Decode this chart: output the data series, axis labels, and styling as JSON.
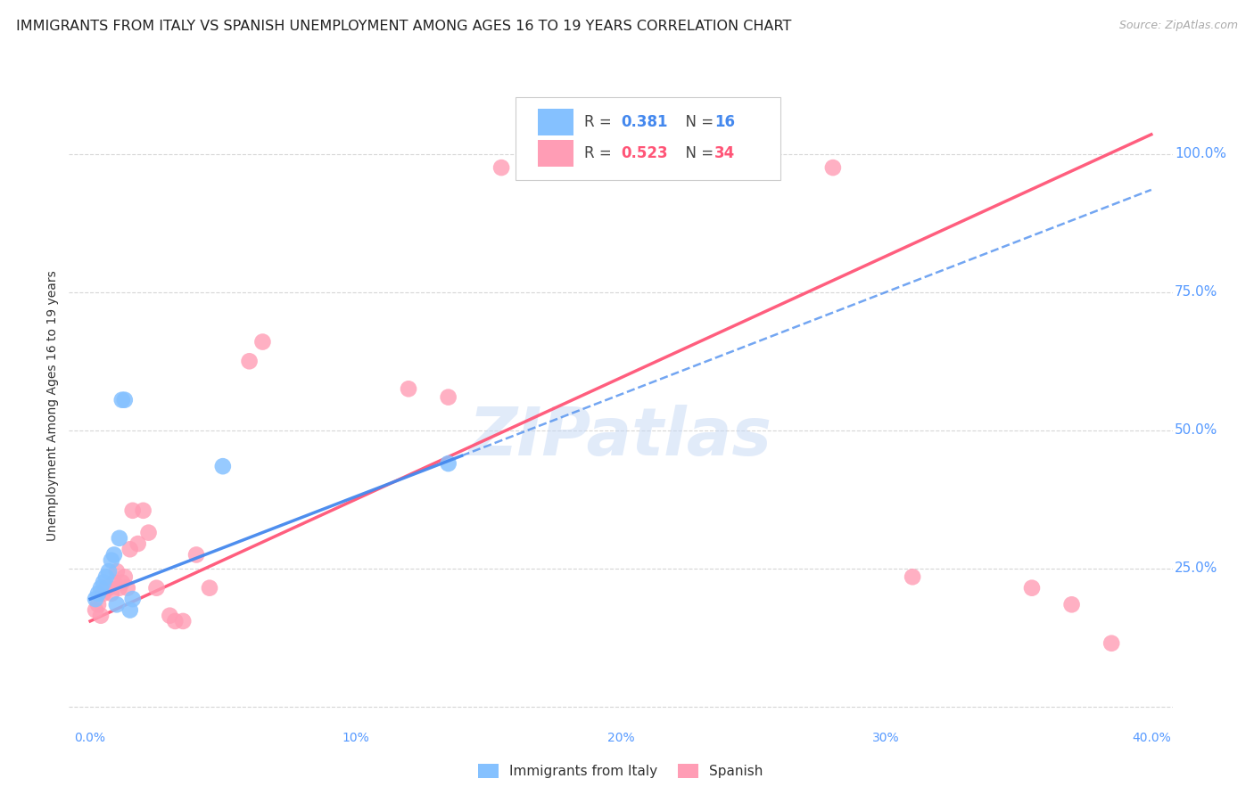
{
  "title": "IMMIGRANTS FROM ITALY VS SPANISH UNEMPLOYMENT AMONG AGES 16 TO 19 YEARS CORRELATION CHART",
  "source": "Source: ZipAtlas.com",
  "ylabel": "Unemployment Among Ages 16 to 19 years",
  "xlim": [
    0.0,
    0.4
  ],
  "ylim": [
    -0.03,
    1.12
  ],
  "xticks": [
    0.0,
    0.1,
    0.2,
    0.3,
    0.4
  ],
  "yticks_right": [
    0.0,
    0.25,
    0.5,
    0.75,
    1.0
  ],
  "ytick_labels_right": [
    "",
    "25.0%",
    "50.0%",
    "75.0%",
    "100.0%"
  ],
  "xtick_labels": [
    "0.0%",
    "10%",
    "20%",
    "30%",
    "40.0%"
  ],
  "watermark": "ZIPatlas",
  "legend_italy_label": "Immigrants from Italy",
  "legend_spanish_label": "Spanish",
  "color_italy": "#85c1ff",
  "color_spanish": "#ff9db5",
  "color_italy_line": "#4488ee",
  "color_spanish_line": "#ff5577",
  "color_axis_labels": "#5599ff",
  "color_r_value": "#4488ee",
  "color_r_spanish": "#ff5577",
  "italy_x": [
    0.002,
    0.003,
    0.004,
    0.005,
    0.006,
    0.007,
    0.008,
    0.009,
    0.01,
    0.011,
    0.012,
    0.013,
    0.015,
    0.016,
    0.05,
    0.135
  ],
  "italy_y": [
    0.195,
    0.205,
    0.215,
    0.225,
    0.235,
    0.245,
    0.265,
    0.275,
    0.185,
    0.305,
    0.555,
    0.555,
    0.175,
    0.195,
    0.435,
    0.44
  ],
  "spanish_x": [
    0.002,
    0.003,
    0.004,
    0.005,
    0.006,
    0.007,
    0.008,
    0.009,
    0.01,
    0.011,
    0.012,
    0.013,
    0.014,
    0.015,
    0.016,
    0.018,
    0.02,
    0.022,
    0.025,
    0.03,
    0.032,
    0.035,
    0.04,
    0.045,
    0.06,
    0.065,
    0.12,
    0.135,
    0.155,
    0.28,
    0.31,
    0.355,
    0.37,
    0.385
  ],
  "spanish_y": [
    0.175,
    0.185,
    0.165,
    0.205,
    0.215,
    0.215,
    0.205,
    0.225,
    0.245,
    0.215,
    0.225,
    0.235,
    0.215,
    0.285,
    0.355,
    0.295,
    0.355,
    0.315,
    0.215,
    0.165,
    0.155,
    0.155,
    0.275,
    0.215,
    0.625,
    0.66,
    0.575,
    0.56,
    0.975,
    0.975,
    0.235,
    0.215,
    0.185,
    0.115
  ],
  "background_color": "#ffffff",
  "grid_color": "#cccccc",
  "title_fontsize": 11.5,
  "axis_label_fontsize": 10,
  "tick_fontsize": 10,
  "italy_line_solid_end": 0.14,
  "spanish_intercept": 0.155,
  "spanish_slope": 2.2,
  "italy_intercept": 0.195,
  "italy_slope": 1.85
}
